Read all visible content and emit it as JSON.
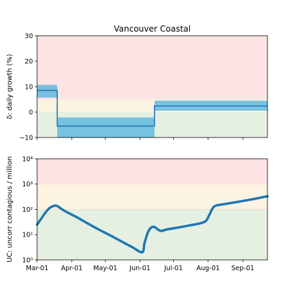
{
  "chart_data": [
    {
      "type": "line",
      "title": "Vancouver Coastal",
      "ylabel": "δ: daily growth (%)",
      "ylim": [
        -10,
        30
      ],
      "yticks": [
        "30",
        "20",
        "10",
        "0",
        "−10"
      ],
      "ytick_values": [
        30,
        20,
        10,
        0,
        -10
      ],
      "x_start": "2020-03-01",
      "x_end": "2020-09-23",
      "zones": [
        {
          "from": 5,
          "to": 30,
          "color": "#fde4e4"
        },
        {
          "from": 0,
          "to": 5,
          "color": "#fdf3e3"
        },
        {
          "from": -10,
          "to": 0,
          "color": "#e6f0e2"
        }
      ],
      "series": [
        {
          "segments": [
            {
              "x_from": "2020-03-01",
              "x_to": "2020-03-19",
              "value": 8.5,
              "band": [
                5.7,
                10.7
              ]
            },
            {
              "x_from": "2020-03-19",
              "x_to": "2020-06-14",
              "value": -5.5,
              "band": [
                -10,
                -2.1
              ]
            },
            {
              "x_from": "2020-06-14",
              "x_to": "2020-09-23",
              "value": 2.4,
              "band": [
                0.5,
                4.5
              ]
            }
          ],
          "color": "#1f77b4",
          "band_color": "#4eb3df"
        }
      ]
    },
    {
      "type": "line",
      "title": "",
      "xlabel": "",
      "ylabel": "UC: uncorr contagious / million",
      "yscale": "log",
      "ylim": [
        1,
        10000
      ],
      "yticks": [
        "10⁰",
        "10¹",
        "10²",
        "10³",
        "10⁴"
      ],
      "ytick_values": [
        1,
        10,
        100,
        1000,
        10000
      ],
      "xticks": [
        "Mar-01",
        "Apr-01",
        "May-01",
        "Jun-01",
        "Jul-01",
        "Aug-01",
        "Sep-01"
      ],
      "xtick_dates": [
        "2020-03-01",
        "2020-04-01",
        "2020-05-01",
        "2020-06-01",
        "2020-07-01",
        "2020-08-01",
        "2020-09-01"
      ],
      "zones": [
        {
          "from": 1000,
          "to": 10000,
          "color": "#fde4e4"
        },
        {
          "from": 100,
          "to": 1000,
          "color": "#fdf3e3"
        },
        {
          "from": 1,
          "to": 100,
          "color": "#e6f0e2"
        }
      ],
      "series": [
        {
          "color": "#1f77b4",
          "x": [
            "2020-03-01",
            "2020-03-05",
            "2020-03-09",
            "2020-03-13",
            "2020-03-17",
            "2020-03-19",
            "2020-03-22",
            "2020-03-27",
            "2020-04-05",
            "2020-04-15",
            "2020-04-25",
            "2020-05-05",
            "2020-05-15",
            "2020-05-25",
            "2020-06-03",
            "2020-06-05",
            "2020-06-08",
            "2020-06-11",
            "2020-06-14",
            "2020-06-17",
            "2020-06-20",
            "2020-06-25",
            "2020-07-05",
            "2020-07-15",
            "2020-07-25",
            "2020-07-30",
            "2020-08-02",
            "2020-08-05",
            "2020-08-08",
            "2020-08-15",
            "2020-08-25",
            "2020-09-05",
            "2020-09-15",
            "2020-09-23"
          ],
          "y": [
            25,
            45,
            80,
            120,
            140,
            135,
            110,
            80,
            50,
            28,
            16,
            9.5,
            5.5,
            3.2,
            2.0,
            4.5,
            12,
            19,
            20,
            16,
            14,
            16,
            19,
            23,
            28,
            35,
            60,
            110,
            140,
            160,
            190,
            230,
            280,
            330
          ]
        }
      ]
    }
  ]
}
